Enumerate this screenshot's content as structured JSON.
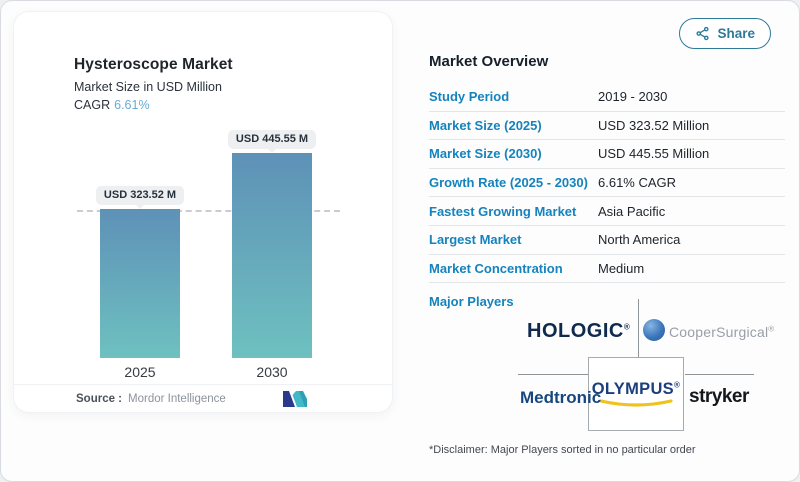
{
  "share": {
    "label": "Share"
  },
  "chart_card": {
    "title": "Hysteroscope Market",
    "subtitle": "Market Size in USD Million",
    "cagr_label": "CAGR",
    "cagr_value": "6.61%",
    "source_label": "Source :",
    "source_value": "Mordor Intelligence"
  },
  "chart_data": {
    "type": "bar",
    "title": "Hysteroscope Market",
    "subtitle": "Market Size in USD Million",
    "unit": "USD Million",
    "categories": [
      "2025",
      "2030"
    ],
    "values": [
      323.52,
      445.55
    ],
    "labels": [
      "USD 323.52 M",
      "USD 445.55 M"
    ],
    "cagr": "6.61%",
    "reference_line_value": 323.52,
    "grid": "single dashed reference line at 2025 value",
    "legend": "none",
    "bar_gradient": [
      "#5e91b7",
      "#6ec1c0"
    ]
  },
  "overview": {
    "title": "Market Overview",
    "rows": [
      {
        "label": "Study Period",
        "value": "2019 - 2030"
      },
      {
        "label": "Market Size (2025)",
        "value": "USD 323.52 Million"
      },
      {
        "label": "Market Size (2030)",
        "value": "USD 445.55 Million"
      },
      {
        "label": "Growth Rate (2025 - 2030)",
        "value": "6.61% CAGR"
      },
      {
        "label": "Fastest Growing Market",
        "value": "Asia Pacific"
      },
      {
        "label": "Largest Market",
        "value": "North America"
      },
      {
        "label": "Market Concentration",
        "value": "Medium"
      }
    ],
    "major_players_label": "Major Players",
    "players": [
      "HOLOGIC",
      "CooperSurgical",
      "Medtronic",
      "OLYMPUS",
      "stryker"
    ],
    "registered_mark": "®",
    "disclaimer": "*Disclaimer: Major Players sorted in no particular order"
  },
  "colors": {
    "accent_blue": "#1583bd",
    "cagr_blue": "#66abd4",
    "share_teal": "#2d7a99",
    "bar_top": "#5e91b7",
    "bar_bottom": "#6ec1c0",
    "hologic_navy": "#0e2a4d",
    "cooper_gray": "#999fa7",
    "medtronic_blue": "#17477e",
    "olympus_navy": "#1b3f7d",
    "olympus_yellow": "#eec31e",
    "stryker_black": "#15181b",
    "logo_navy": "#2b3a8c",
    "logo_teal": "#41b9c9"
  }
}
